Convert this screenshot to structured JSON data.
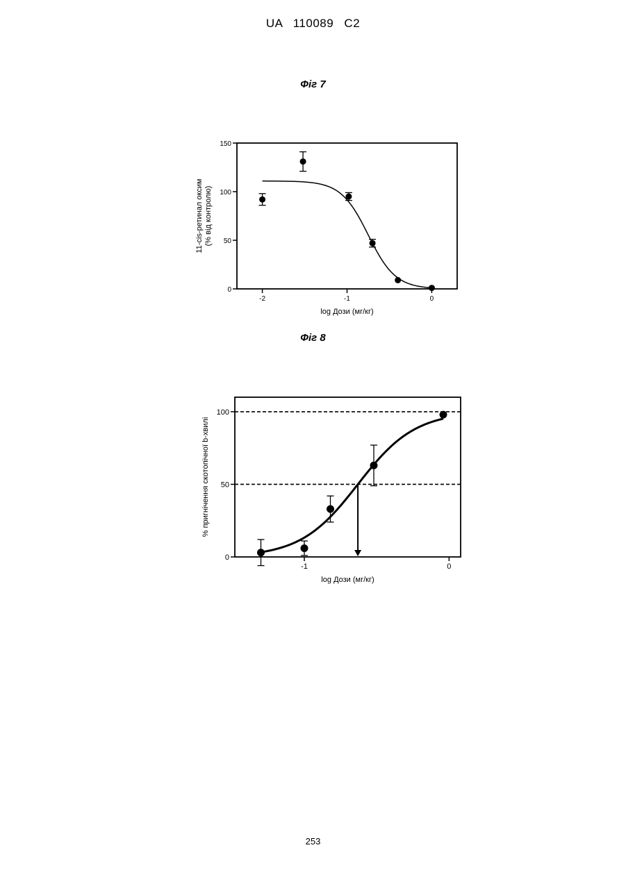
{
  "header": {
    "doc_number": "UA   110089   C2"
  },
  "page_number": "253",
  "chart_data": [
    {
      "type": "scatter",
      "figure_label": "Фіг 7",
      "xlabel": "log Дози (мг/кг)",
      "ylabel_line1": "11-cis-ретинал оксим",
      "ylabel_line2": "(% від контролю)",
      "xlim": [
        -2.3,
        0.3
      ],
      "ylim": [
        0,
        150
      ],
      "x_ticks": [
        -2,
        -1,
        0
      ],
      "x_tick_labels": [
        "-2",
        "-1",
        "0"
      ],
      "y_ticks": [
        0,
        50,
        100,
        150
      ],
      "y_tick_labels": [
        "0",
        "50",
        "100",
        "150"
      ],
      "grid": false,
      "points": [
        {
          "x": -2.0,
          "y": 92,
          "err": 6
        },
        {
          "x": -1.52,
          "y": 131,
          "err": 10
        },
        {
          "x": -0.98,
          "y": 95,
          "err": 4
        },
        {
          "x": -0.7,
          "y": 47,
          "err": 4
        },
        {
          "x": -0.4,
          "y": 9,
          "err": 0
        },
        {
          "x": 0.0,
          "y": 1,
          "err": 0
        }
      ],
      "fit_curve": {
        "top": 111,
        "bottom": 0,
        "log_ec50": -0.75,
        "hill": 2.7,
        "x_range": [
          -2.0,
          0.0
        ]
      }
    },
    {
      "type": "scatter",
      "figure_label": "Фіг 8",
      "xlabel": "log Дози (мг/кг)",
      "ylabel": "% пригнічення скотопічної b-хвилі",
      "xlim": [
        -1.48,
        0.08
      ],
      "ylim": [
        0,
        110
      ],
      "x_ticks": [
        -1,
        0
      ],
      "x_tick_labels": [
        "-1",
        "0"
      ],
      "y_ticks": [
        0,
        50,
        100
      ],
      "y_tick_labels": [
        "0",
        "50",
        "100"
      ],
      "grid": false,
      "reference_lines": [
        50,
        100
      ],
      "ec50_arrow": {
        "x": -0.63,
        "from_y": 50,
        "to_y": 0
      },
      "points": [
        {
          "x": -1.3,
          "y": 3,
          "err": 9
        },
        {
          "x": -1.0,
          "y": 6,
          "err": 5
        },
        {
          "x": -0.82,
          "y": 33,
          "err": 9
        },
        {
          "x": -0.52,
          "y": 63,
          "err": 14
        },
        {
          "x": -0.04,
          "y": 98,
          "err": 0
        }
      ],
      "fit_curve": {
        "top": 100,
        "bottom": 0,
        "log_ec50": -0.63,
        "hill": 2.2,
        "x_range": [
          -1.3,
          -0.04
        ]
      }
    }
  ]
}
